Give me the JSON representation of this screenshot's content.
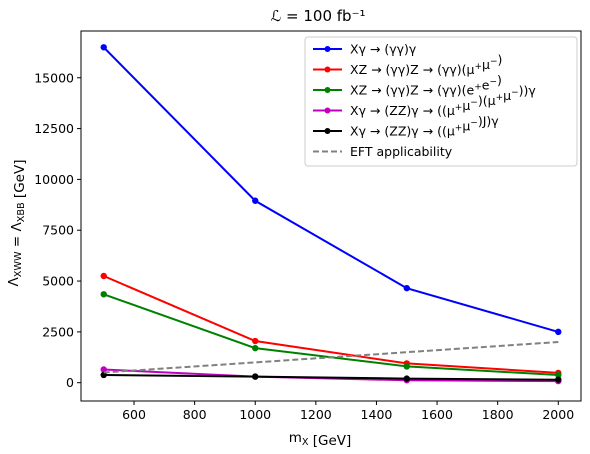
{
  "chart_data": {
    "type": "line",
    "title": "ℒ = 100 fb⁻¹",
    "xlabel": "m_X [GeV]",
    "ylabel": "Λ_XWW = Λ_XBB [GeV]",
    "xlim": [
      425,
      2075
    ],
    "ylim": [
      -900,
      17300
    ],
    "xticks": [
      600,
      800,
      1000,
      1200,
      1400,
      1600,
      1800,
      2000
    ],
    "yticks": [
      0,
      2500,
      5000,
      7500,
      10000,
      12500,
      15000
    ],
    "grid": false,
    "legend_position": "top-right",
    "x": [
      500,
      1000,
      1500,
      2000
    ],
    "series": [
      {
        "name": "Xγ → (γγ)γ",
        "color": "#0000ff",
        "values": [
          16500,
          8950,
          4650,
          2500
        ],
        "style": "solid",
        "marker": true
      },
      {
        "name": "XZ → (γγ)Z → (γγ)(μ⁺μ⁻)",
        "color": "#ff0000",
        "values": [
          5250,
          2050,
          950,
          480
        ],
        "style": "solid",
        "marker": true
      },
      {
        "name": "XZ → (γγ)Z → (γγ)(e⁺e⁻)",
        "color": "#008000",
        "values": [
          4350,
          1700,
          800,
          380
        ],
        "style": "solid",
        "marker": true
      },
      {
        "name": "Xγ → (ZZ)γ → ((μ⁺μ⁻)(μ⁺μ⁻))γ",
        "color": "#bf00bf",
        "values": [
          650,
          300,
          120,
          80
        ],
        "style": "solid",
        "marker": true
      },
      {
        "name": "Xγ → (ZZ)γ → ((μ⁺μ⁻)J)γ",
        "color": "#000000",
        "values": [
          380,
          300,
          200,
          150
        ],
        "style": "solid",
        "marker": true
      },
      {
        "name": "EFT applicability",
        "color": "#808080",
        "values": [
          500,
          1000,
          1500,
          2000
        ],
        "style": "dashed",
        "marker": false
      }
    ]
  }
}
